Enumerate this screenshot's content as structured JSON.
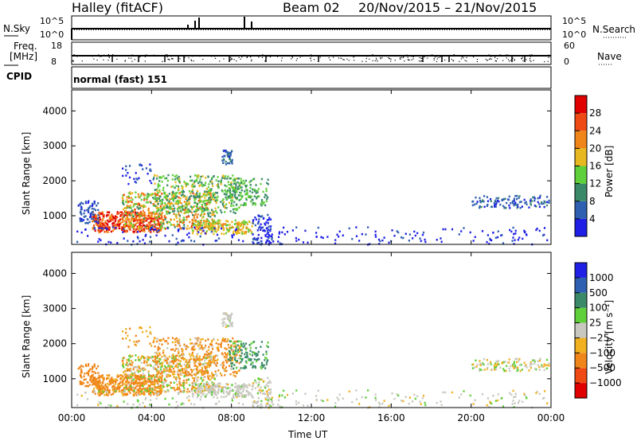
{
  "header": {
    "station": "Halley (fitACF)",
    "beam": "Beam 02",
    "date_range": "20/Nov/2015 – 21/Nov/2015"
  },
  "noise_panel": {
    "left_label": "N.Sky",
    "right_label": "N.Search",
    "left_ticks": [
      "10^5",
      "10^0"
    ],
    "right_ticks": [
      "10^5",
      "10^0"
    ]
  },
  "freq_panel": {
    "left_label_1": "Freq.",
    "left_label_2": "[MHz]",
    "right_label": "Nave",
    "left_ticks": [
      "18",
      "8"
    ],
    "right_ticks": [
      "60",
      "0"
    ]
  },
  "cpid_panel": {
    "label": "CPID",
    "mode": "normal (fast) 151"
  },
  "colors": {
    "power": [
      "#1f1fe6",
      "#2f5fb0",
      "#3a8a6a",
      "#5fcf3a",
      "#e8b820",
      "#f0861a",
      "#f04a14",
      "#e00000"
    ],
    "velocity": [
      "#e00000",
      "#f04a14",
      "#f0861a",
      "#f0b020",
      "#c8c8c0",
      "#5fcf3a",
      "#3a8a6a",
      "#2f5fb0",
      "#1f1fe6"
    ]
  },
  "chart_data": [
    {
      "type": "heatmap",
      "quantity": "power",
      "ylabel": "Slant Range [km]",
      "xlabel": "Time UT",
      "ylim": [
        180,
        4600
      ],
      "xlim": [
        0,
        24
      ],
      "y_ticks": [
        "1000",
        "2000",
        "3000",
        "4000"
      ],
      "colorbar": {
        "label": "Power [dB]",
        "ticks": [
          "4",
          "8",
          "12",
          "16",
          "20",
          "24",
          "28"
        ],
        "range": [
          0,
          32
        ]
      }
    },
    {
      "type": "heatmap",
      "quantity": "velocity",
      "ylabel": "Slant Range [km]",
      "xlabel": "Time UT",
      "ylim": [
        180,
        4600
      ],
      "xlim": [
        0,
        24
      ],
      "y_ticks": [
        "1000",
        "2000",
        "3000",
        "4000"
      ],
      "x_ticks": [
        "00:00",
        "04:00",
        "08:00",
        "12:00",
        "16:00",
        "20:00",
        "00:00"
      ],
      "colorbar": {
        "label": "Velocity [m s⁻¹]",
        "ticks": [
          "1000",
          "500",
          "100",
          "25",
          "−25",
          "−100",
          "−500",
          "−1000"
        ]
      }
    }
  ]
}
